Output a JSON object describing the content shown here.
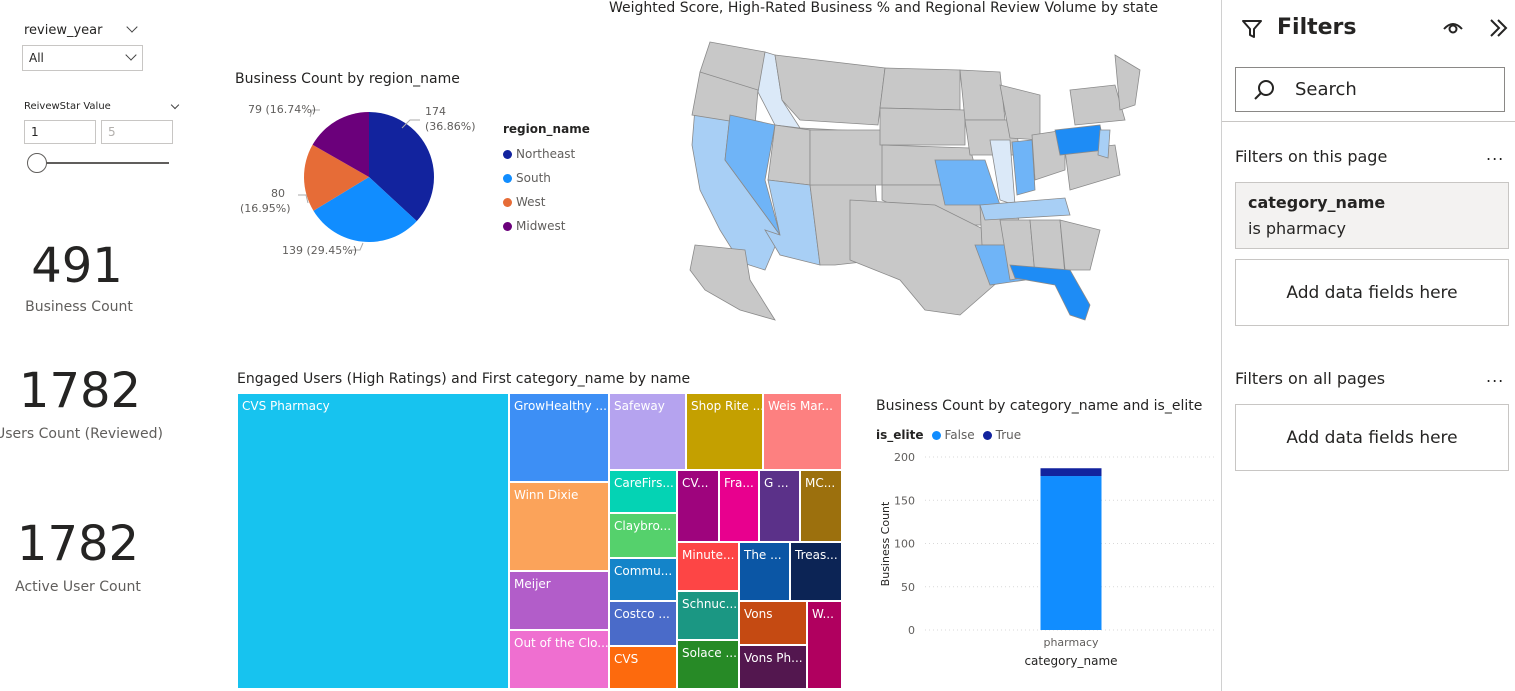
{
  "slicers": {
    "year": {
      "title": "review_year",
      "selected": "All"
    },
    "star": {
      "title": "ReivewStar Value",
      "min_value": "1",
      "max_placeholder": "5"
    }
  },
  "kpis": [
    {
      "value": "491",
      "label": "Business Count"
    },
    {
      "value": "1782",
      "label": "Users Count (Reviewed)"
    },
    {
      "value": "1782",
      "label": "Active User Count"
    }
  ],
  "pie": {
    "title": "Business Count by region_name",
    "legend_title": "region_name",
    "slices": [
      {
        "name": "Northeast",
        "value": 174,
        "label": "174\n(36.86%)",
        "color": "#12239e"
      },
      {
        "name": "South",
        "value": 139,
        "label": "139 (29.45%)",
        "color": "#118dff"
      },
      {
        "name": "West",
        "value": 80,
        "label": "80\n(16.95%)",
        "color": "#e66c37"
      },
      {
        "name": "Midwest",
        "value": 79,
        "label": "79 (16.74%)",
        "color": "#6b007b"
      }
    ]
  },
  "map": {
    "title": "Weighted Score, High-Rated Business % and Regional Review Volume by state",
    "colors": {
      "base": "#c8c8c8",
      "light": "#dbe9f8",
      "medium": "#a8cff5",
      "mid": "#6fb4f7",
      "strong": "#1e8cf5"
    }
  },
  "treemap": {
    "title": "Engaged Users (High Ratings) and First category_name by name",
    "items": [
      {
        "label": "CVS Pharmacy",
        "color": "#17c3ef"
      },
      {
        "label": "GrowHealthy ...",
        "color": "#3d8ff5"
      },
      {
        "label": "Winn Dixie",
        "color": "#fba35a"
      },
      {
        "label": "Meijer",
        "color": "#b25dc9"
      },
      {
        "label": "Out of the Clo...",
        "color": "#ef6fd0"
      },
      {
        "label": "Safeway",
        "color": "#b5a3ef"
      },
      {
        "label": "Shop Rite ...",
        "color": "#c4a000"
      },
      {
        "label": "Weis Mar...",
        "color": "#fd8080"
      },
      {
        "label": "CareFirs...",
        "color": "#04d3b4"
      },
      {
        "label": "Claybro...",
        "color": "#55d16c"
      },
      {
        "label": "Commu...",
        "color": "#1484c9"
      },
      {
        "label": "Costco ...",
        "color": "#4a6bc9"
      },
      {
        "label": "CVS",
        "color": "#fd6a0d"
      },
      {
        "label": "CV...",
        "color": "#9e047d"
      },
      {
        "label": "Fra...",
        "color": "#e8008e"
      },
      {
        "label": "G ...",
        "color": "#5b3189"
      },
      {
        "label": "MC...",
        "color": "#9c700d"
      },
      {
        "label": "Minute...",
        "color": "#fd4545"
      },
      {
        "label": "The ...",
        "color": "#0b56a5"
      },
      {
        "label": "Treas...",
        "color": "#0c2455"
      },
      {
        "label": "Schnuc...",
        "color": "#1b9783"
      },
      {
        "label": "Vons",
        "color": "#c54a12"
      },
      {
        "label": "W...",
        "color": "#b0005f"
      },
      {
        "label": "Solace ...",
        "color": "#278a26"
      },
      {
        "label": "Vons Ph...",
        "color": "#53174f"
      }
    ]
  },
  "bar": {
    "title": "Business Count by category_name and is_elite",
    "legend_title": "is_elite",
    "legend": [
      {
        "name": "False",
        "color": "#118dff"
      },
      {
        "name": "True",
        "color": "#12239e"
      }
    ]
  },
  "chart_data": {
    "type": "bar",
    "stacked": true,
    "categories": [
      "pharmacy"
    ],
    "series": [
      {
        "name": "False",
        "values": [
          178
        ]
      },
      {
        "name": "True",
        "values": [
          9
        ]
      }
    ],
    "xlabel": "category_name",
    "ylabel": "Business Count",
    "ylim": [
      0,
      200
    ],
    "yticks": [
      "200",
      "150",
      "100",
      "50",
      "0"
    ]
  },
  "filters": {
    "title": "Filters",
    "search_placeholder": "Search",
    "section_page": "Filters on this page",
    "section_all": "Filters on all pages",
    "more": "...",
    "active_filter": {
      "field": "category_name",
      "condition": "is pharmacy"
    },
    "add_fields": "Add data fields here"
  }
}
